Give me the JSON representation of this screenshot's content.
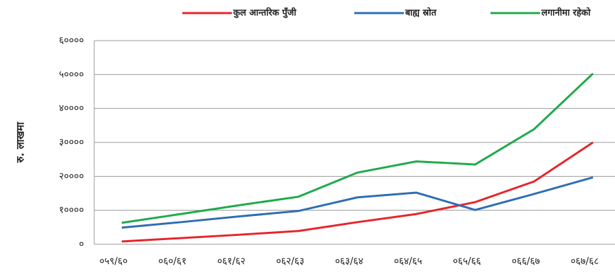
{
  "chart_data": {
    "type": "line",
    "y_label": "रु. लाखमा",
    "categories": [
      "०५९/६०",
      "०६०/६१",
      "०६१/६२",
      "०६२/६३",
      "०६३/६४",
      "०६४/६५",
      "०६५/६६",
      "०६६/६७",
      "०६७/६८"
    ],
    "series": [
      {
        "name": "कुल आन्तरिक पुँजी",
        "color": "#e8242b",
        "values": [
          800,
          1800,
          2800,
          3900,
          6500,
          8900,
          12400,
          18500,
          30000
        ]
      },
      {
        "name": "बाह्य स्रोत",
        "color": "#2e6db4",
        "values": [
          4900,
          6500,
          8200,
          9800,
          13800,
          15200,
          10100,
          14800,
          19700
        ]
      },
      {
        "name": "लगानीमा रहेको",
        "color": "#1faa4b",
        "values": [
          6300,
          8900,
          11500,
          14000,
          21100,
          24400,
          23500,
          33900,
          50300
        ]
      }
    ],
    "ylim": [
      0,
      60000
    ],
    "yticks": [
      {
        "value": 0,
        "label": "०"
      },
      {
        "value": 10000,
        "label": "१००००"
      },
      {
        "value": 20000,
        "label": "२००००"
      },
      {
        "value": 30000,
        "label": "३००००"
      },
      {
        "value": 40000,
        "label": "४००००"
      },
      {
        "value": 50000,
        "label": "५००००"
      },
      {
        "value": 60000,
        "label": "६००००"
      }
    ],
    "grid": true,
    "legend": "top"
  }
}
